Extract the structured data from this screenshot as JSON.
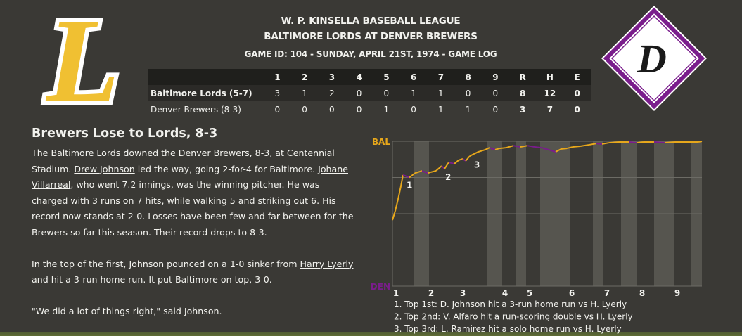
{
  "header": {
    "league": "W. P. KINSELLA BASEBALL LEAGUE",
    "matchup": "BALTIMORE LORDS AT DENVER BREWERS",
    "game_info": "GAME ID: 104 - SUNDAY, APRIL 21ST, 1974 - ",
    "game_log_link": "GAME LOG",
    "away_logo": "L",
    "home_logo": "D"
  },
  "linescore": {
    "columns": [
      "",
      1,
      2,
      3,
      4,
      5,
      6,
      7,
      8,
      9,
      "R",
      "H",
      "E"
    ],
    "rows": [
      [
        "Baltimore Lords (5-7)",
        3,
        1,
        2,
        0,
        0,
        1,
        1,
        0,
        0,
        8,
        12,
        0
      ],
      [
        "Denver Brewers (8-3)",
        0,
        0,
        0,
        0,
        1,
        0,
        1,
        1,
        0,
        3,
        7,
        0
      ]
    ]
  },
  "article": {
    "headline": "Brewers Lose to Lords, 8-3",
    "paragraphs": [
      [
        {
          "text": "The "
        },
        {
          "text": "Baltimore Lords",
          "link": true
        },
        {
          "text": " downed the "
        },
        {
          "text": "Denver Brewers",
          "link": true
        },
        {
          "text": ", 8-3, at Centennial Stadium. "
        },
        {
          "text": "Drew Johnson",
          "link": true
        },
        {
          "text": " led the way, going 2-for-4 for Baltimore. "
        },
        {
          "text": "Johane Villarreal",
          "link": true
        },
        {
          "text": ", who went 7.2 innings, was the winning pitcher. He was charged with 3 runs on 7 hits, while walking 5 and striking out 6. His record now stands at 2-0. Losses have been few and far between for the Brewers so far this season. Their record drops to 8-3."
        }
      ],
      [
        {
          "text": "In the top of the first, Johnson pounced on a 1-0 sinker from "
        },
        {
          "text": "Harry Lyerly",
          "link": true
        },
        {
          "text": " and hit a 3-run home run. It put Baltimore on top, 3-0."
        }
      ],
      [
        {
          "text": "\"We did a lot of things right,\" said Johnson."
        }
      ]
    ]
  },
  "chart_data": {
    "type": "line",
    "xlim": [
      0,
      88
    ],
    "ylim": [
      0,
      100
    ],
    "yticks": [
      {
        "value": 100,
        "label": "BAL"
      },
      {
        "value": 0,
        "label": "DEN"
      }
    ],
    "gridlines": [
      25,
      50,
      75
    ],
    "xticks": [
      {
        "value": 1,
        "label": "1"
      },
      {
        "value": 11,
        "label": "2"
      },
      {
        "value": 20,
        "label": "3"
      },
      {
        "value": 32,
        "label": "4"
      },
      {
        "value": 39,
        "label": "5"
      },
      {
        "value": 51,
        "label": "6"
      },
      {
        "value": 61,
        "label": "7"
      },
      {
        "value": 71,
        "label": "8"
      },
      {
        "value": 81,
        "label": "9"
      }
    ],
    "shaded": [
      [
        6,
        10.4
      ],
      [
        27,
        31.2
      ],
      [
        35,
        38
      ],
      [
        42,
        50.4
      ],
      [
        57,
        60
      ],
      [
        65,
        69.4
      ],
      [
        74.4,
        80
      ],
      [
        85,
        88
      ]
    ],
    "color_up": "#e8a81b",
    "color_down": "#7a1d8c",
    "x": [
      0,
      0.8,
      1.6,
      2.4,
      3,
      3.8,
      4.8,
      6.4,
      8.4,
      10,
      10.8,
      12.4,
      14,
      14.8,
      16,
      17.6,
      18.8,
      20,
      20.8,
      22,
      23.2,
      24.4,
      26.4,
      27.6,
      29.2,
      30.4,
      32.4,
      34.4,
      36.4,
      38.4,
      40.4,
      42.4,
      44.4,
      46.4,
      48,
      49.6,
      51.2,
      53.4,
      56,
      58,
      59.6,
      61.6,
      64.4,
      67.4,
      69.4,
      71.4,
      74.4,
      77.4,
      80.4,
      83.4,
      85.4,
      87,
      88
    ],
    "values": [
      45.6,
      52,
      60,
      69,
      76.7,
      76,
      75,
      78,
      79.6,
      78,
      78.6,
      79.6,
      83,
      81,
      85.4,
      84.5,
      86.9,
      87.9,
      86.4,
      89.8,
      91.3,
      92.7,
      94.2,
      95.6,
      94.2,
      95.1,
      95.6,
      97,
      96.1,
      97,
      96.1,
      95.6,
      94.2,
      92.7,
      94.7,
      95.1,
      96.1,
      96.6,
      97.6,
      98.5,
      98.1,
      99,
      99.5,
      99.5,
      99,
      99.5,
      99.5,
      99,
      99.5,
      99.5,
      99.5,
      99.5,
      100
    ],
    "events": [
      {
        "marker": "1",
        "x": 3.4
      },
      {
        "marker": "2",
        "x": 14.4
      },
      {
        "marker": "3",
        "x": 22.6
      }
    ],
    "notes": [
      "1. Top 1st: D. Johnson hit a 3-run home run vs H. Lyerly",
      "2. Top 2nd: V. Alfaro hit a run-scoring double vs H. Lyerly",
      "3. Top 3rd: L. Ramirez hit a solo home run vs H. Lyerly"
    ]
  }
}
